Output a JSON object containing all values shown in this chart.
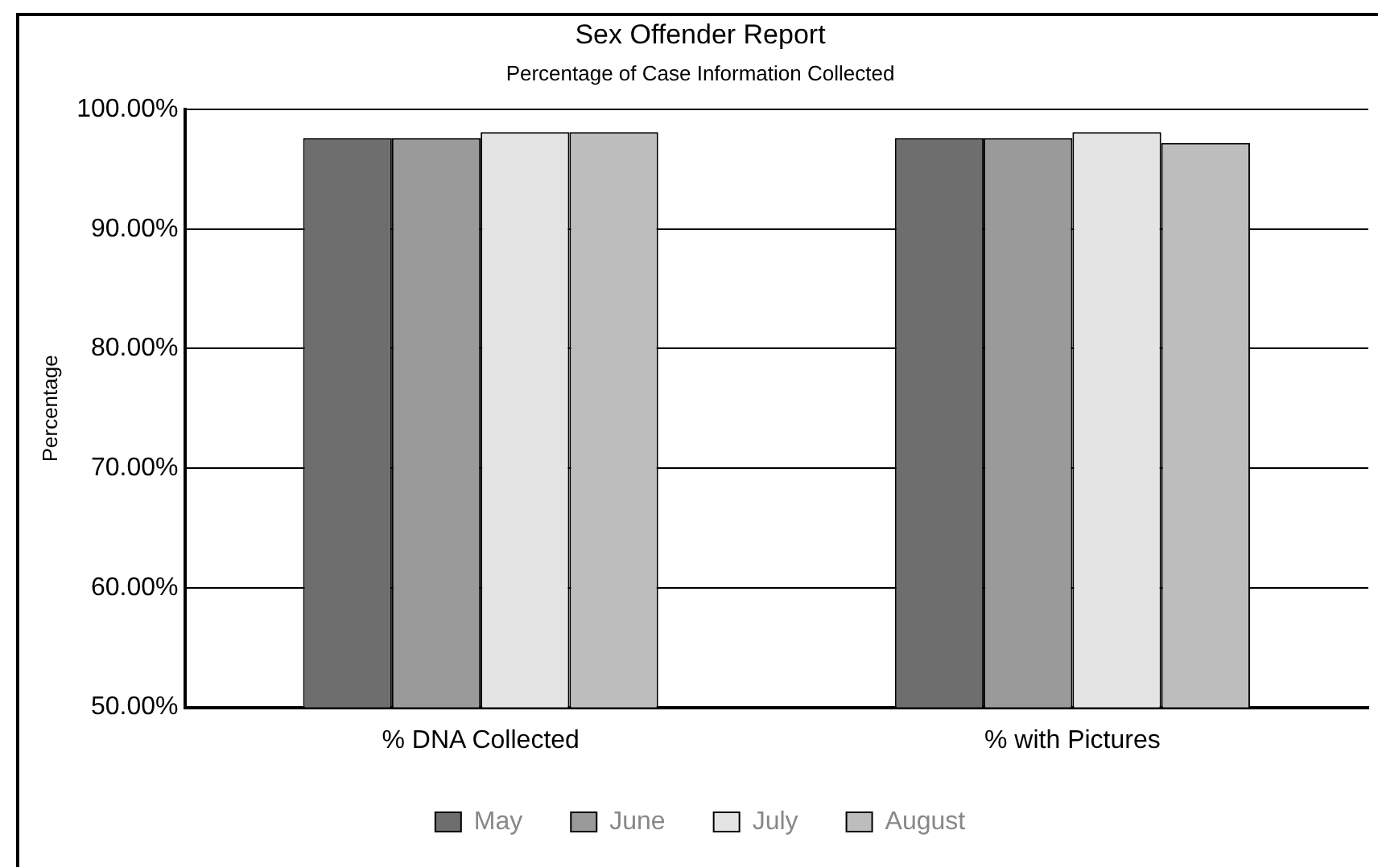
{
  "chart_data": {
    "type": "bar",
    "title": "Sex Offender Report",
    "subtitle": "Percentage of Case Information Collected",
    "ylabel": "Percentage",
    "categories": [
      "% DNA Collected",
      "% with Pictures"
    ],
    "series": [
      {
        "name": "May",
        "color": "#6e6e6e",
        "values": [
          97.6,
          97.6
        ]
      },
      {
        "name": "June",
        "color": "#9a9a9a",
        "values": [
          97.6,
          97.6
        ]
      },
      {
        "name": "July",
        "color": "#e4e4e4",
        "values": [
          98.1,
          98.1
        ]
      },
      {
        "name": "August",
        "color": "#bdbdbd",
        "values": [
          98.1,
          97.2
        ]
      }
    ],
    "ylim": [
      50,
      100
    ],
    "yticks": [
      {
        "value": 50,
        "label": "50.00%"
      },
      {
        "value": 60,
        "label": "60.00%"
      },
      {
        "value": 70,
        "label": "70.00%"
      },
      {
        "value": 80,
        "label": "80.00%"
      },
      {
        "value": 90,
        "label": "90.00%"
      },
      {
        "value": 100,
        "label": "100.00%"
      }
    ],
    "grid": "y",
    "legend": "bottom"
  }
}
